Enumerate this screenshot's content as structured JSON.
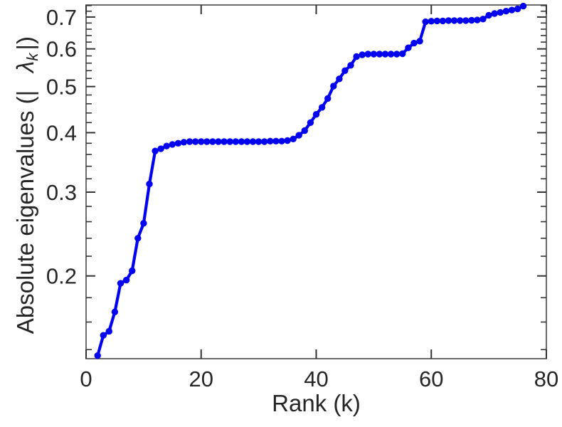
{
  "figure": {
    "background": "#ffffff",
    "title": ""
  },
  "style": {
    "box_color": "#5a5a5a",
    "tick_color": "#333333",
    "label_color": "#262626",
    "tick_font_size": 31,
    "label_font_size": 33
  },
  "chart_data": {
    "type": "line",
    "title": "",
    "xlabel": "Rank (k)",
    "ylabel": "Absolute eigenvalues (| λ_k |)",
    "ylabel_parts": {
      "prefix": "Absolute eigenvalues (|",
      "symbol": "λ",
      "subscript": "k",
      "suffix": "|)"
    },
    "x_scale": "linear",
    "y_scale": "log",
    "xlim": [
      0,
      80
    ],
    "ylim": [
      0.134,
      0.742
    ],
    "x_ticks": [
      0,
      20,
      40,
      60,
      80
    ],
    "x_tick_labels": [
      "0",
      "20",
      "40",
      "60",
      "80"
    ],
    "y_ticks": [
      0.2,
      0.3,
      0.4,
      0.5,
      0.6,
      0.7
    ],
    "y_tick_labels": [
      "0.2",
      "0.3",
      "0.4",
      "0.5",
      "0.6",
      "0.7"
    ],
    "y_minor_ticks": [
      0.14,
      0.16,
      0.18,
      0.22,
      0.24,
      0.26,
      0.28,
      0.32,
      0.34,
      0.36,
      0.38,
      0.42,
      0.44,
      0.46,
      0.48,
      0.52,
      0.54,
      0.56,
      0.58,
      0.62,
      0.64,
      0.66,
      0.68,
      0.72,
      0.74
    ],
    "grid": false,
    "legend": null,
    "box": true,
    "series": [
      {
        "name": "absolute-eigenvalues",
        "color": "#0202f0",
        "marker": "circle",
        "marker_size": 4.7,
        "line_width": 4.2,
        "x": [
          2,
          3,
          4,
          5,
          6,
          7,
          8,
          9,
          10,
          11,
          12,
          13,
          14,
          15,
          16,
          17,
          18,
          19,
          20,
          21,
          22,
          23,
          24,
          25,
          26,
          27,
          28,
          29,
          30,
          31,
          32,
          33,
          34,
          35,
          36,
          37,
          38,
          39,
          40,
          41,
          42,
          43,
          44,
          45,
          46,
          47,
          48,
          49,
          50,
          51,
          52,
          53,
          54,
          55,
          56,
          57,
          58,
          59,
          60,
          61,
          62,
          63,
          64,
          65,
          66,
          67,
          68,
          69,
          70,
          71,
          72,
          73,
          74,
          75,
          76
        ],
        "y": [
          0.136,
          0.15,
          0.153,
          0.168,
          0.193,
          0.196,
          0.205,
          0.24,
          0.258,
          0.312,
          0.366,
          0.37,
          0.375,
          0.378,
          0.38,
          0.382,
          0.383,
          0.383,
          0.383,
          0.383,
          0.383,
          0.383,
          0.383,
          0.383,
          0.383,
          0.383,
          0.383,
          0.383,
          0.383,
          0.383,
          0.384,
          0.384,
          0.384,
          0.385,
          0.388,
          0.395,
          0.404,
          0.42,
          0.437,
          0.452,
          0.472,
          0.501,
          0.519,
          0.54,
          0.554,
          0.578,
          0.583,
          0.585,
          0.585,
          0.585,
          0.585,
          0.585,
          0.585,
          0.586,
          0.603,
          0.617,
          0.623,
          0.684,
          0.686,
          0.687,
          0.687,
          0.688,
          0.688,
          0.688,
          0.688,
          0.689,
          0.69,
          0.693,
          0.706,
          0.712,
          0.716,
          0.72,
          0.724,
          0.728,
          0.738
        ]
      }
    ]
  }
}
